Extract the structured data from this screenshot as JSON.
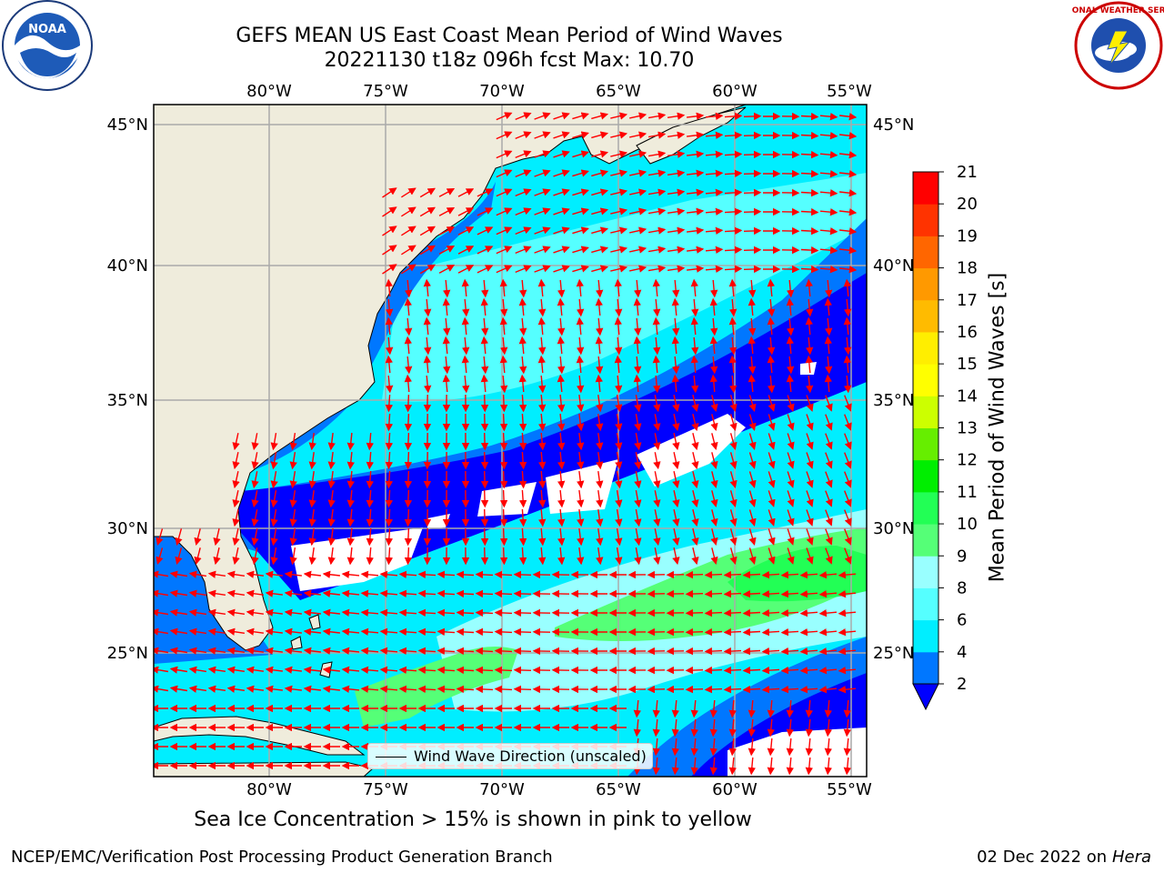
{
  "title": {
    "line1": "GEFS MEAN US East Coast Mean Period of Wind Waves",
    "line2": "20221130 t18z 096h fcst   Max: 10.70"
  },
  "axes": {
    "lon_labels": [
      "80°W",
      "75°W",
      "70°W",
      "65°W",
      "60°W",
      "55°W"
    ],
    "lat_labels": [
      "45°N",
      "40°N",
      "35°N",
      "30°N",
      "25°N"
    ]
  },
  "map": {
    "extent_lon": [
      -85,
      -54.5
    ],
    "extent_lat": [
      20.5,
      46
    ],
    "land_color": "#efecdc",
    "gridline_color": "#aaaaaa",
    "arrow_color": "#ff0000"
  },
  "legend": {
    "label": "Wind Wave Direction (unscaled)"
  },
  "colorbar": {
    "title": "Mean Period of Wind Waves [s]",
    "ticks": [
      "2",
      "4",
      "6",
      "8",
      "9",
      "10",
      "11",
      "12",
      "13",
      "14",
      "15",
      "16",
      "17",
      "18",
      "19",
      "20",
      "21"
    ],
    "colors": [
      "#0000ff",
      "#0077ff",
      "#00eeff",
      "#55ffff",
      "#99ffff",
      "#55ff77",
      "#22ff55",
      "#00ee00",
      "#66ee00",
      "#ccff00",
      "#ffff00",
      "#ffee00",
      "#ffbb00",
      "#ff9900",
      "#ff6600",
      "#ff3300",
      "#ff0000"
    ],
    "extend_color": "#0000ff"
  },
  "subtitle": "Sea Ice Concentration > 15% is shown in pink to yellow",
  "footer": {
    "left": "NCEP/EMC/Verification Post Processing Product Generation Branch",
    "date": "02 Dec 2022 on",
    "system": "Hera"
  },
  "logos": {
    "noaa_text": "NOAA",
    "nws_text": "NATIONAL WEATHER SERVICE"
  }
}
